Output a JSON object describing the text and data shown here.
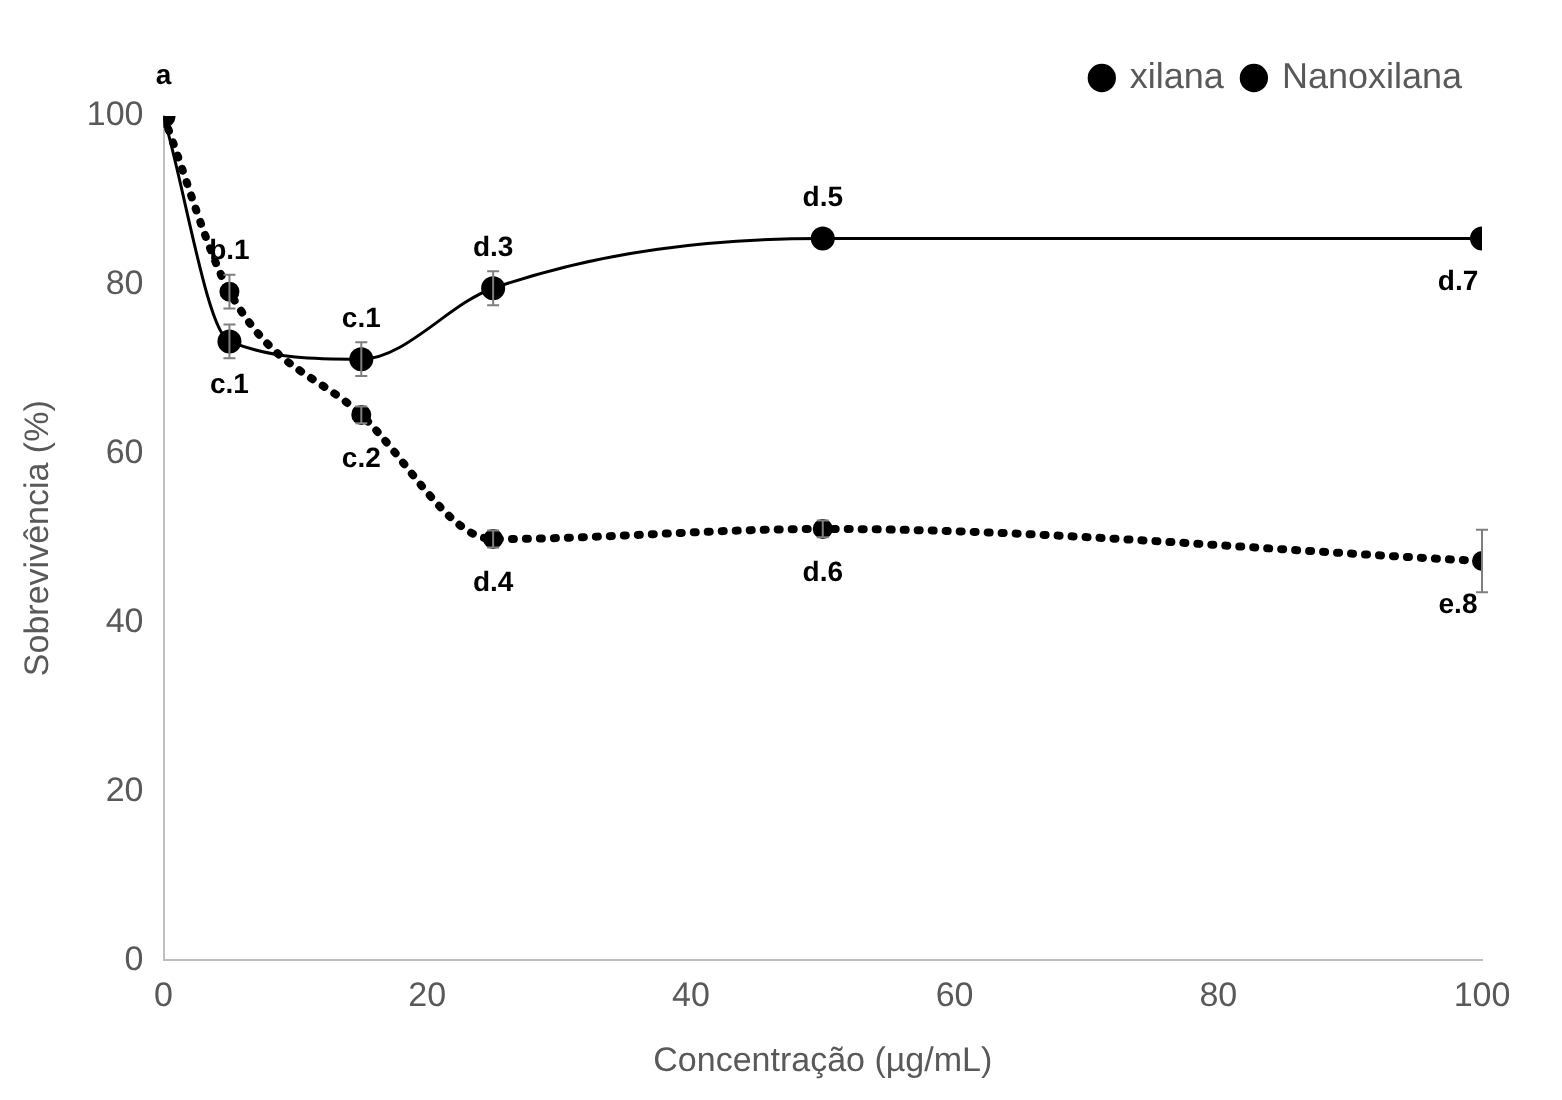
{
  "chart_data": {
    "type": "line",
    "xlabel": "Concentração (µg/mL)",
    "ylabel": "Sobrevivência (%)",
    "xlim": [
      0,
      100
    ],
    "xticks": [
      0,
      20,
      40,
      60,
      80,
      100
    ],
    "ylim": [
      0,
      100
    ],
    "yticks": [
      0,
      20,
      40,
      60,
      80,
      100
    ],
    "grid": false,
    "legend": "top right",
    "marker": "circle",
    "series": [
      {
        "name": "xilana",
        "color": "#000000",
        "line_style": "solid",
        "x": [
          0,
          5,
          15,
          25,
          50,
          100
        ],
        "values": [
          100,
          73.3,
          71.2,
          79.6,
          85.5,
          85.5
        ],
        "errors": [
          null,
          2,
          2,
          2,
          null,
          null
        ]
      },
      {
        "name": "Nanoxilana",
        "color": "#000000",
        "line_style": "dotted",
        "x": [
          0,
          5,
          15,
          25,
          50,
          100
        ],
        "values": [
          100,
          79.2,
          64.6,
          49.9,
          51.1,
          47.3
        ],
        "errors": [
          null,
          2,
          1,
          1,
          1,
          3.7
        ]
      }
    ],
    "annotations": [
      {
        "text": "a",
        "x": 0,
        "y": 100
      },
      {
        "text": "b.1",
        "x": 5,
        "y": 79.2
      },
      {
        "text": "c.1",
        "x": 5,
        "y": 73.3
      },
      {
        "text": "c.1",
        "x": 15,
        "y": 71.2
      },
      {
        "text": "c.2",
        "x": 15,
        "y": 64.6
      },
      {
        "text": "d.3",
        "x": 25,
        "y": 79.6
      },
      {
        "text": "d.4",
        "x": 25,
        "y": 49.9
      },
      {
        "text": "d.5",
        "x": 50,
        "y": 85.5
      },
      {
        "text": "d.6",
        "x": 50,
        "y": 51.1
      },
      {
        "text": "d.7",
        "x": 100,
        "y": 85.5
      },
      {
        "text": "e.8",
        "x": 100,
        "y": 47.3
      }
    ]
  }
}
